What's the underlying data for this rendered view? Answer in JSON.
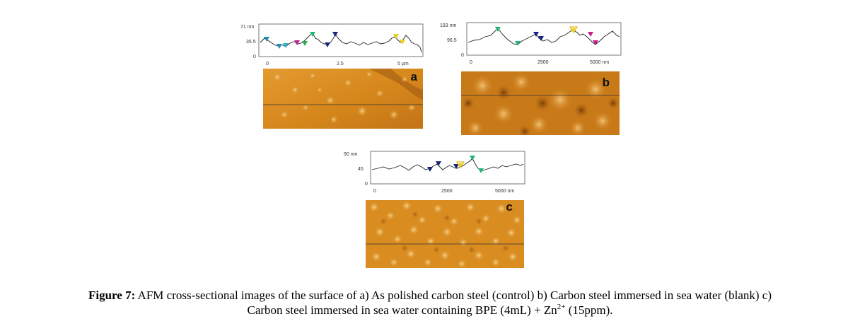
{
  "figure": {
    "caption_label": "Figure 7:",
    "caption_line1": "AFM cross-sectional images of the surface of a) As polished carbon steel (control) b) Carbon steel immersed in sea water (blank) c)",
    "caption_line2_pre": "Carbon steel immersed in sea water containing BPE (4mL) + Zn",
    "caption_sup": "2+",
    "caption_line2_post": " (15ppm)."
  },
  "panels": [
    {
      "letter": "a",
      "y_ticks": [
        "71 nm",
        "35.5",
        "0"
      ],
      "x_ticks": [
        "0",
        "2.5",
        "5 µm"
      ],
      "profile_colors": [
        "#1f8fb8",
        "#1f8fb8",
        "#2fb3c9",
        "#c21f8a",
        "#2fa84f",
        "#22b573",
        "#1a237e",
        "#1a237e",
        "#e6d21a",
        "#e6d21a"
      ],
      "surface_base": "#d88a1e",
      "surface_light": "#f0c070",
      "surface_dark": "#a85e10"
    },
    {
      "letter": "b",
      "y_ticks": [
        "193 nm",
        "96.5",
        "0"
      ],
      "x_ticks": [
        "0",
        "2500",
        "5000 nm"
      ],
      "profile_colors": [
        "#22b573",
        "#22b573",
        "#1a237e",
        "#1a237e",
        "#e6d21a",
        "#c21f8a",
        "#c21f8a"
      ],
      "surface_base": "#c97a18",
      "surface_light": "#eab060",
      "surface_dark": "#8a4a0a"
    },
    {
      "letter": "c",
      "y_ticks": [
        "90 nm",
        "45",
        "0"
      ],
      "x_ticks": [
        "0",
        "2500",
        "5000 nm"
      ],
      "profile_colors": [
        "#1a237e",
        "#1a237e",
        "#e6d21a",
        "#22b573",
        "#22b573"
      ],
      "surface_base": "#d98c20",
      "surface_light": "#f5c878",
      "surface_dark": "#b06a14"
    }
  ]
}
